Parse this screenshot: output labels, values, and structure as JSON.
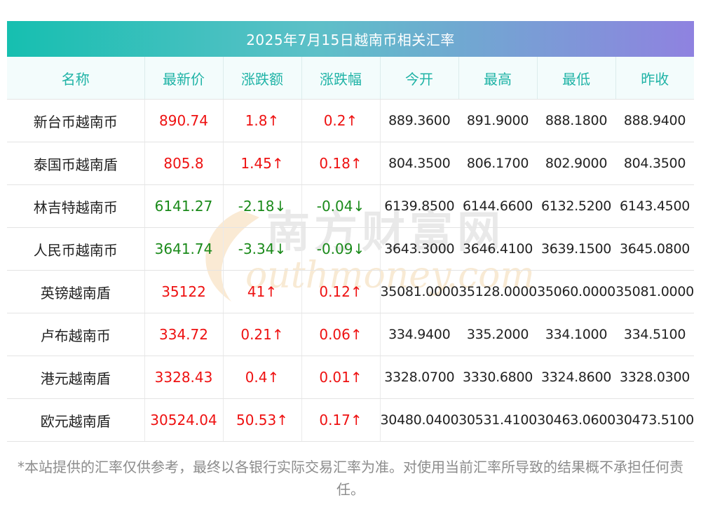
{
  "title": "2025年7月15日越南币相关汇率",
  "columns": [
    "名称",
    "最新价",
    "涨跌额",
    "涨跌幅",
    "今开",
    "最高",
    "最低",
    "昨收"
  ],
  "rows": [
    {
      "name": "新台币越南币",
      "latest": "890.74",
      "change": "1.8↑",
      "change_pct": "0.2↑",
      "open": "889.3600",
      "high": "891.9000",
      "low": "888.1800",
      "prev_close": "888.9400",
      "direction": "up"
    },
    {
      "name": "泰国币越南盾",
      "latest": "805.8",
      "change": "1.45↑",
      "change_pct": "0.18↑",
      "open": "804.3500",
      "high": "806.1700",
      "low": "802.9000",
      "prev_close": "804.3500",
      "direction": "up"
    },
    {
      "name": "林吉特越南币",
      "latest": "6141.27",
      "change": "-2.18↓",
      "change_pct": "-0.04↓",
      "open": "6139.8500",
      "high": "6144.6600",
      "low": "6132.5200",
      "prev_close": "6143.4500",
      "direction": "down"
    },
    {
      "name": "人民币越南币",
      "latest": "3641.74",
      "change": "-3.34↓",
      "change_pct": "-0.09↓",
      "open": "3643.3000",
      "high": "3646.4100",
      "low": "3639.1500",
      "prev_close": "3645.0800",
      "direction": "down"
    },
    {
      "name": "英镑越南盾",
      "latest": "35122",
      "change": "41↑",
      "change_pct": "0.12↑",
      "open": "35081.0000",
      "high": "35128.0000",
      "low": "35060.0000",
      "prev_close": "35081.0000",
      "direction": "up"
    },
    {
      "name": "卢布越南币",
      "latest": "334.72",
      "change": "0.21↑",
      "change_pct": "0.06↑",
      "open": "334.9400",
      "high": "335.2000",
      "low": "334.1000",
      "prev_close": "334.5100",
      "direction": "up"
    },
    {
      "name": "港元越南盾",
      "latest": "3328.43",
      "change": "0.4↑",
      "change_pct": "0.01↑",
      "open": "3328.0700",
      "high": "3330.6800",
      "low": "3324.8600",
      "prev_close": "3328.0300",
      "direction": "up"
    },
    {
      "name": "欧元越南盾",
      "latest": "30524.04",
      "change": "50.53↑",
      "change_pct": "0.17↑",
      "open": "30480.0400",
      "high": "30531.4100",
      "low": "30463.0600",
      "prev_close": "30473.5100",
      "direction": "up"
    }
  ],
  "watermark": {
    "cn": "南方财富网",
    "en": "outhmoney.com"
  },
  "disclaimer": "*本站提供的汇率仅供参考，最终以各银行实际交易汇率为准。对使用当前汇率所导致的结果概不承担任何责任。",
  "colors": {
    "up": "#ee1111",
    "down": "#1a8a1a",
    "header_text": "#1fb3a6",
    "title_gradient_start": "#16bfb0",
    "title_gradient_end": "#8f82e0"
  }
}
